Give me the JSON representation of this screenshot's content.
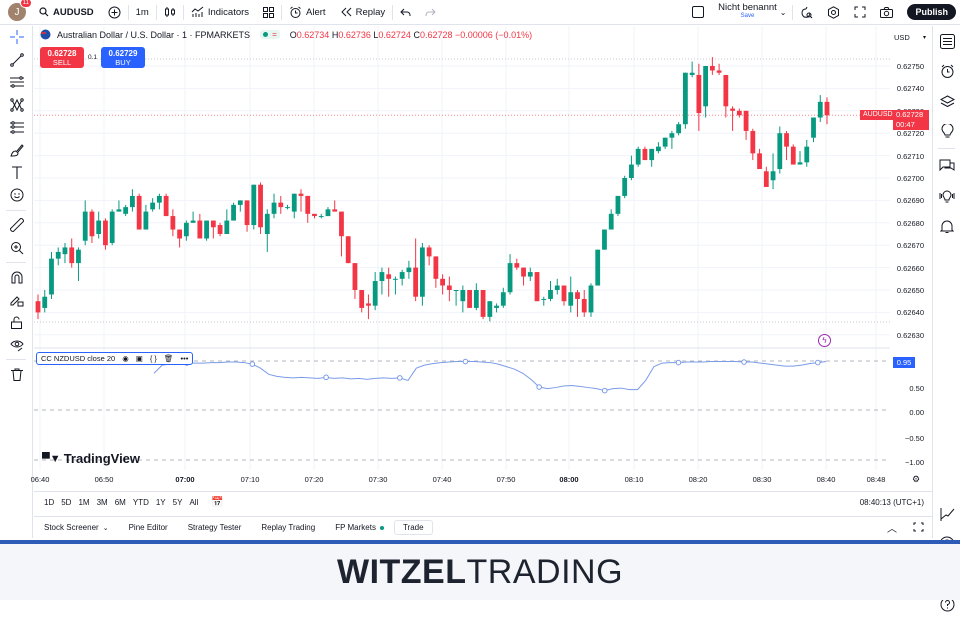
{
  "topbar": {
    "avatar_initial": "J",
    "notification_count": "11",
    "symbol": "AUDUSD",
    "interval": "1m",
    "indicators_label": "Indicators",
    "alert_label": "Alert",
    "replay_label": "Replay",
    "layout_name": "Nicht benannt",
    "save_label": "Save",
    "publish_label": "Publish"
  },
  "legend": {
    "title": "Australian Dollar / U.S. Dollar · 1 · FPMARKETS",
    "o_label": "O",
    "o": "0.62734",
    "h_label": "H",
    "h": "0.62736",
    "l_label": "L",
    "l": "0.62724",
    "c_label": "C",
    "c": "0.62728",
    "change": "−0.00006 (−0.01%)"
  },
  "trade": {
    "sell_price": "0.62728",
    "sell_label": "SELL",
    "quantity": "0.1",
    "buy_price": "0.62729",
    "buy_label": "BUY"
  },
  "price_axis": {
    "currency": "USD",
    "labels": [
      "0.62750",
      "0.62740",
      "0.62730",
      "0.62720",
      "0.62710",
      "0.62700",
      "0.62690",
      "0.62680",
      "0.62670",
      "0.62660",
      "0.62650",
      "0.62640",
      "0.62630"
    ],
    "symbol_tag": "AUDUSD",
    "current_price": "0.62728",
    "countdown": "00:47"
  },
  "indicator": {
    "label": "CC NZDUSD close 20",
    "current_value": "0.95",
    "axis_labels": [
      "0.50",
      "0.00",
      "−0.50",
      "−1.00"
    ]
  },
  "time_axis": {
    "labels": [
      "06:40",
      "06:50",
      "07:00",
      "07:10",
      "07:20",
      "07:30",
      "07:40",
      "07:50",
      "08:00",
      "08:10",
      "08:20",
      "08:30",
      "08:40",
      "08:48"
    ],
    "bold": [
      "07:00",
      "08:00"
    ]
  },
  "ranges": [
    "1D",
    "5D",
    "1M",
    "3M",
    "6M",
    "YTD",
    "1Y",
    "5Y",
    "All"
  ],
  "clock": "08:40:13 (UTC+1)",
  "bottom_tabs": [
    "Stock Screener",
    "Pine Editor",
    "Strategy Tester",
    "Replay Trading",
    "FP Markets",
    "Trade"
  ],
  "watermark": "TradingView",
  "footer": {
    "brand_bold": "WITZEL",
    "brand_light": "TRADING"
  },
  "colors": {
    "up": "#089981",
    "down": "#f23645",
    "accent": "#2962ff",
    "indicator_line": "#7b9be8"
  },
  "chart_data": {
    "type": "candlestick",
    "title": "Australian Dollar / U.S. Dollar · 1 · FPMARKETS",
    "ylim": [
      0.62625,
      0.62755
    ],
    "candles": [
      [
        0.62645,
        0.62648,
        0.62637,
        0.6264
      ],
      [
        0.62642,
        0.6265,
        0.6264,
        0.62647
      ],
      [
        0.62648,
        0.62667,
        0.62646,
        0.62664
      ],
      [
        0.62664,
        0.62669,
        0.62661,
        0.62667
      ],
      [
        0.62666,
        0.62671,
        0.62662,
        0.62669
      ],
      [
        0.62669,
        0.62673,
        0.6266,
        0.62662
      ],
      [
        0.62662,
        0.62669,
        0.62654,
        0.62668
      ],
      [
        0.62672,
        0.6269,
        0.6267,
        0.62685
      ],
      [
        0.62685,
        0.62686,
        0.62671,
        0.62674
      ],
      [
        0.62675,
        0.62685,
        0.62673,
        0.62681
      ],
      [
        0.62681,
        0.62682,
        0.62668,
        0.6267
      ],
      [
        0.62671,
        0.62686,
        0.6267,
        0.62685
      ],
      [
        0.62685,
        0.6269,
        0.62685,
        0.62686
      ],
      [
        0.62684,
        0.62688,
        0.62683,
        0.62687
      ],
      [
        0.62687,
        0.62695,
        0.62685,
        0.62692
      ],
      [
        0.62692,
        0.62693,
        0.62677,
        0.62677
      ],
      [
        0.62677,
        0.62688,
        0.62677,
        0.62685
      ],
      [
        0.62686,
        0.62691,
        0.62685,
        0.62689
      ],
      [
        0.62689,
        0.62693,
        0.62686,
        0.62692
      ],
      [
        0.62692,
        0.62693,
        0.62683,
        0.62683
      ],
      [
        0.62683,
        0.62686,
        0.62674,
        0.62677
      ],
      [
        0.62677,
        0.62677,
        0.62669,
        0.62673
      ],
      [
        0.62674,
        0.62681,
        0.62672,
        0.6268
      ],
      [
        0.6268,
        0.62685,
        0.6268,
        0.62681
      ],
      [
        0.62681,
        0.62684,
        0.62673,
        0.62673
      ],
      [
        0.62673,
        0.62681,
        0.62672,
        0.62681
      ],
      [
        0.62681,
        0.62681,
        0.62673,
        0.62678
      ],
      [
        0.62679,
        0.6268,
        0.62674,
        0.62675
      ],
      [
        0.62675,
        0.62686,
        0.62675,
        0.62681
      ],
      [
        0.62681,
        0.62689,
        0.62681,
        0.62688
      ],
      [
        0.62688,
        0.6269,
        0.62685,
        0.6269
      ],
      [
        0.6269,
        0.6269,
        0.62676,
        0.62679
      ],
      [
        0.62679,
        0.62697,
        0.62677,
        0.62697
      ],
      [
        0.62697,
        0.62698,
        0.62675,
        0.62678
      ],
      [
        0.62675,
        0.62686,
        0.62667,
        0.62684
      ],
      [
        0.62684,
        0.62693,
        0.62682,
        0.62689
      ],
      [
        0.62689,
        0.62692,
        0.62684,
        0.62687
      ],
      [
        0.62687,
        0.62688,
        0.62686,
        0.62687
      ],
      [
        0.62685,
        0.62693,
        0.62682,
        0.62693
      ],
      [
        0.62693,
        0.62695,
        0.62685,
        0.62692
      ],
      [
        0.62692,
        0.62692,
        0.6268,
        0.62684
      ],
      [
        0.62684,
        0.62684,
        0.62682,
        0.62683
      ],
      [
        0.62683,
        0.62684,
        0.62682,
        0.62683
      ],
      [
        0.62683,
        0.62687,
        0.62683,
        0.62686
      ],
      [
        0.62686,
        0.6269,
        0.62686,
        0.62685
      ],
      [
        0.62685,
        0.62685,
        0.62665,
        0.62674
      ],
      [
        0.62674,
        0.62674,
        0.62662,
        0.62662
      ],
      [
        0.62662,
        0.62662,
        0.62646,
        0.6265
      ],
      [
        0.6265,
        0.6265,
        0.6264,
        0.62642
      ],
      [
        0.62644,
        0.62648,
        0.62637,
        0.62643
      ],
      [
        0.62643,
        0.62658,
        0.62641,
        0.62654
      ],
      [
        0.62654,
        0.6266,
        0.62648,
        0.62658
      ],
      [
        0.62657,
        0.6266,
        0.62647,
        0.62655
      ],
      [
        0.62655,
        0.62656,
        0.62648,
        0.62655
      ],
      [
        0.62655,
        0.62659,
        0.62652,
        0.62658
      ],
      [
        0.62658,
        0.62663,
        0.62655,
        0.6266
      ],
      [
        0.6266,
        0.62673,
        0.62645,
        0.62647
      ],
      [
        0.62647,
        0.62671,
        0.62643,
        0.62669
      ],
      [
        0.62669,
        0.6267,
        0.62661,
        0.62665
      ],
      [
        0.62665,
        0.62665,
        0.62651,
        0.62655
      ],
      [
        0.62655,
        0.62657,
        0.62648,
        0.62652
      ],
      [
        0.62652,
        0.62656,
        0.62645,
        0.6265
      ],
      [
        0.6265,
        0.6265,
        0.62643,
        0.6265
      ],
      [
        0.62645,
        0.62652,
        0.6264,
        0.6265
      ],
      [
        0.6265,
        0.6265,
        0.62642,
        0.62642
      ],
      [
        0.62642,
        0.62653,
        0.62641,
        0.6265
      ],
      [
        0.6265,
        0.6265,
        0.62637,
        0.62638
      ],
      [
        0.62638,
        0.62645,
        0.62636,
        0.62645
      ],
      [
        0.62642,
        0.62644,
        0.6264,
        0.62643
      ],
      [
        0.62643,
        0.62651,
        0.62642,
        0.62649
      ],
      [
        0.62649,
        0.62666,
        0.62648,
        0.62662
      ],
      [
        0.62662,
        0.62664,
        0.62659,
        0.6266
      ],
      [
        0.6266,
        0.6266,
        0.62652,
        0.62656
      ],
      [
        0.62656,
        0.6266,
        0.62654,
        0.62658
      ],
      [
        0.62658,
        0.62658,
        0.62645,
        0.62645
      ],
      [
        0.62646,
        0.62647,
        0.62643,
        0.62646
      ],
      [
        0.62646,
        0.62654,
        0.62645,
        0.6265
      ],
      [
        0.6265,
        0.62655,
        0.62648,
        0.62652
      ],
      [
        0.62652,
        0.62652,
        0.62643,
        0.62645
      ],
      [
        0.62643,
        0.62656,
        0.6264,
        0.62649
      ],
      [
        0.62649,
        0.6265,
        0.62638,
        0.62646
      ],
      [
        0.62646,
        0.6265,
        0.62638,
        0.6264
      ],
      [
        0.6264,
        0.62653,
        0.62638,
        0.62652
      ],
      [
        0.62652,
        0.62667,
        0.62652,
        0.62668
      ],
      [
        0.62668,
        0.62677,
        0.62668,
        0.62677
      ],
      [
        0.62677,
        0.62686,
        0.62677,
        0.62684
      ],
      [
        0.62684,
        0.62692,
        0.62683,
        0.62692
      ],
      [
        0.62692,
        0.62701,
        0.62691,
        0.627
      ],
      [
        0.627,
        0.6271,
        0.62699,
        0.62706
      ],
      [
        0.62706,
        0.62714,
        0.62705,
        0.62713
      ],
      [
        0.62713,
        0.62711,
        0.62714,
        0.62708
      ],
      [
        0.62708,
        0.62705,
        0.62708,
        0.62713
      ],
      [
        0.62712,
        0.62716,
        0.62711,
        0.62714
      ],
      [
        0.62714,
        0.62718,
        0.62713,
        0.62718
      ],
      [
        0.62718,
        0.62721,
        0.62713,
        0.6272
      ],
      [
        0.6272,
        0.62725,
        0.62719,
        0.62724
      ],
      [
        0.62724,
        0.6273,
        0.62722,
        0.62747
      ],
      [
        0.62746,
        0.62752,
        0.62745,
        0.62747
      ],
      [
        0.62746,
        0.62751,
        0.62721,
        0.62729
      ],
      [
        0.62732,
        0.62749,
        0.62727,
        0.6275
      ],
      [
        0.6275,
        0.62754,
        0.62746,
        0.62748
      ],
      [
        0.62748,
        0.62751,
        0.62746,
        0.62747
      ],
      [
        0.62746,
        0.62746,
        0.62727,
        0.62732
      ],
      [
        0.62731,
        0.62732,
        0.62721,
        0.6273
      ],
      [
        0.6273,
        0.62731,
        0.62727,
        0.62728
      ],
      [
        0.6273,
        0.6273,
        0.62717,
        0.62721
      ],
      [
        0.62721,
        0.62722,
        0.62708,
        0.62711
      ],
      [
        0.62711,
        0.62713,
        0.62704,
        0.62704
      ],
      [
        0.62703,
        0.62705,
        0.62699,
        0.62696
      ],
      [
        0.62699,
        0.62711,
        0.62695,
        0.62703
      ],
      [
        0.62704,
        0.62723,
        0.62702,
        0.6272
      ],
      [
        0.6272,
        0.62721,
        0.62708,
        0.62714
      ],
      [
        0.62714,
        0.62715,
        0.62708,
        0.62706
      ],
      [
        0.62706,
        0.62712,
        0.62706,
        0.62707
      ],
      [
        0.62707,
        0.62717,
        0.62705,
        0.62714
      ],
      [
        0.62718,
        0.62724,
        0.62716,
        0.62727
      ],
      [
        0.62727,
        0.62737,
        0.62725,
        0.62734
      ],
      [
        0.62734,
        0.62736,
        0.62724,
        0.62728
      ]
    ],
    "indicator_series": [
      0.72,
      0.88,
      0.9,
      0.91,
      0.92,
      0.92,
      0.92,
      0.93,
      0.93,
      0.94,
      0.94,
      0.93,
      0.9,
      0.82,
      0.7,
      0.66,
      0.64,
      0.63,
      0.64,
      0.63,
      0.62,
      0.64,
      0.62,
      0.63,
      0.61,
      0.62,
      0.6,
      0.62,
      0.63,
      0.62,
      0.63,
      0.58,
      0.82,
      0.88,
      0.91,
      0.93,
      0.94,
      0.95,
      0.95,
      0.95,
      0.94,
      0.93,
      0.9,
      0.85,
      0.8,
      0.72,
      0.6,
      0.45,
      0.42,
      0.44,
      0.47,
      0.48,
      0.46,
      0.44,
      0.42,
      0.38,
      0.42,
      0.43,
      0.4,
      0.4,
      0.58,
      0.85,
      0.92,
      0.93,
      0.93,
      0.94,
      0.94,
      0.94,
      0.95,
      0.95,
      0.95,
      0.95,
      0.94,
      0.94,
      0.92,
      0.9,
      0.88,
      0.86,
      0.86,
      0.88,
      0.91,
      0.93,
      0.95
    ],
    "indicator_ylim": [
      -1.1,
      1.1
    ]
  }
}
